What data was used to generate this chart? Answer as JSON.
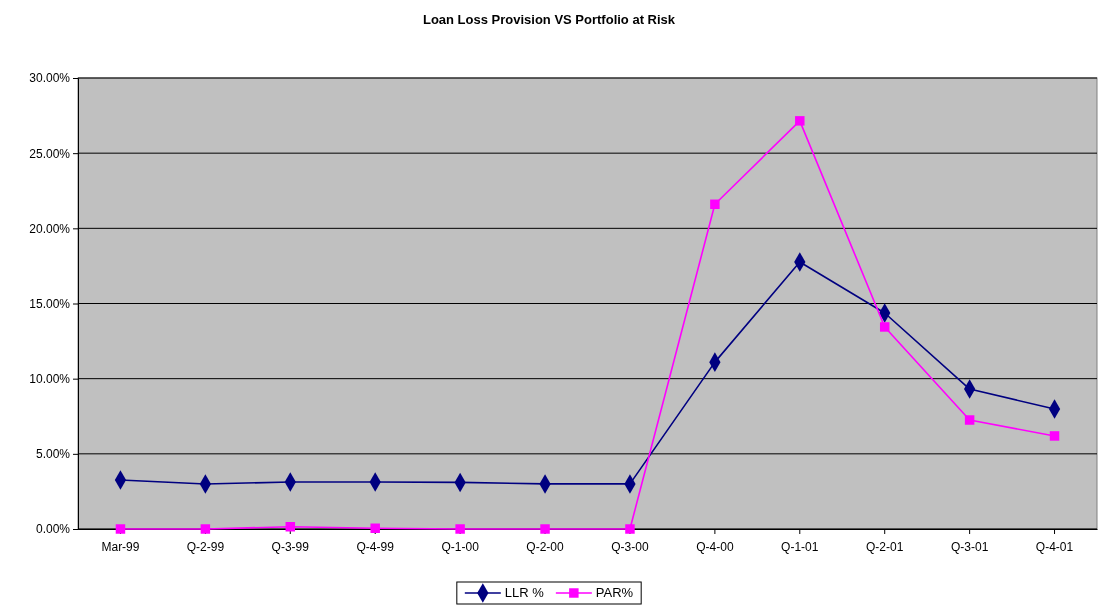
{
  "chart_data": {
    "type": "line",
    "title": "Loan Loss Provision VS Portfolio at Risk",
    "categories": [
      "Mar-99",
      "Q-2-99",
      "Q-3-99",
      "Q-4-99",
      "Q-1-00",
      "Q-2-00",
      "Q-3-00",
      "Q-4-00",
      "Q-1-01",
      "Q-2-01",
      "Q-3-01",
      "Q-4-01"
    ],
    "series": [
      {
        "name": "LLR %",
        "color": "#000080",
        "marker": "diamond",
        "values": [
          3.26,
          2.99,
          3.13,
          3.13,
          3.1,
          3.0,
          3.0,
          11.1,
          17.76,
          14.37,
          9.31,
          7.98
        ]
      },
      {
        "name": "PAR%",
        "color": "#ff00ff",
        "marker": "square",
        "values": [
          0,
          0,
          0.15,
          0.05,
          0,
          0,
          0,
          21.6,
          27.15,
          13.44,
          7.25,
          6.19
        ]
      }
    ],
    "ylim": [
      0,
      30
    ],
    "yticks": [
      {
        "value": 0,
        "label": "0.00%"
      },
      {
        "value": 5,
        "label": "5.00%"
      },
      {
        "value": 10,
        "label": "10.00%"
      },
      {
        "value": 15,
        "label": "15.00%"
      },
      {
        "value": 20,
        "label": "20.00%"
      },
      {
        "value": 25,
        "label": "25.00%"
      },
      {
        "value": 30,
        "label": "30.00%"
      }
    ],
    "grid": "y",
    "legend": "bottom"
  }
}
